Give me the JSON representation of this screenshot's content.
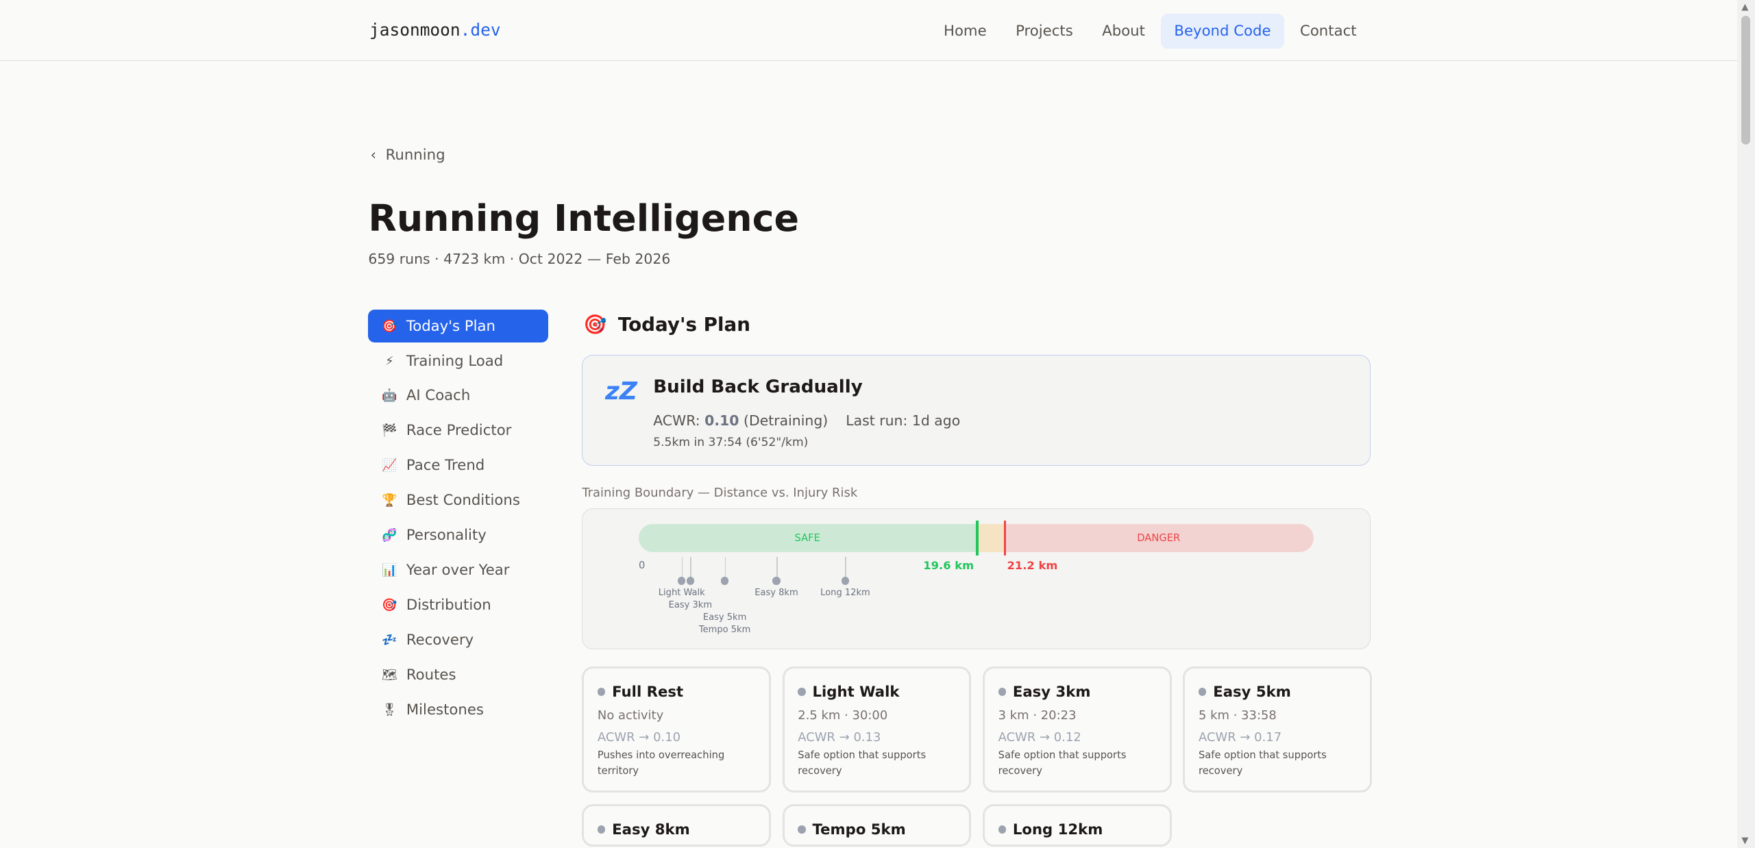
{
  "header": {
    "logo_name": "jasonmoon",
    "logo_tld": ".dev",
    "nav": [
      "Home",
      "Projects",
      "About",
      "Beyond Code",
      "Contact"
    ],
    "active_nav": "Beyond Code"
  },
  "breadcrumb": {
    "back_label": "Running"
  },
  "page": {
    "title": "Running Intelligence",
    "subtitle": "659 runs · 4723 km · Oct 2022 — Feb 2026"
  },
  "sidebar": {
    "items": [
      {
        "icon": "🎯",
        "label": "Today's Plan",
        "active": true
      },
      {
        "icon": "⚡",
        "label": "Training Load"
      },
      {
        "icon": "🤖",
        "label": "AI Coach"
      },
      {
        "icon": "🏁",
        "label": "Race Predictor"
      },
      {
        "icon": "📈",
        "label": "Pace Trend"
      },
      {
        "icon": "🏆",
        "label": "Best Conditions"
      },
      {
        "icon": "🧬",
        "label": "Personality"
      },
      {
        "icon": "📊",
        "label": "Year over Year"
      },
      {
        "icon": "🎯",
        "label": "Distribution"
      },
      {
        "icon": "💤",
        "label": "Recovery"
      },
      {
        "icon": "🗺",
        "label": "Routes"
      },
      {
        "icon": "🎖",
        "label": "Milestones"
      }
    ]
  },
  "section": {
    "icon": "🎯",
    "title": "Today's Plan"
  },
  "recommendation": {
    "icon": "💤",
    "title": "Build Back Gradually",
    "acwr_label": "ACWR:",
    "acwr_value": "0.10",
    "acwr_status": "(Detraining)",
    "last_run": "Last run: 1d ago",
    "detail": "5.5km in 37:54 (6'52\"/km)"
  },
  "boundary": {
    "caption": "Training Boundary — Distance vs. Injury Risk",
    "safe_label": "SAFE",
    "danger_label": "DANGER",
    "zero_label": "0",
    "safe_limit_km": 19.6,
    "danger_limit_km": 21.2,
    "safe_limit_label": "19.6 km",
    "danger_limit_label": "21.2 km",
    "scale_max_km": 39.2,
    "colors": {
      "safe": "#22c55e",
      "danger": "#ef4444"
    },
    "markers": [
      {
        "label": "Light Walk",
        "km": 2.5
      },
      {
        "label": "Easy 3km",
        "km": 3
      },
      {
        "label": "Easy 5km",
        "km": 5
      },
      {
        "label": "Tempo 5km",
        "km": 5
      },
      {
        "label": "Easy 8km",
        "km": 8
      },
      {
        "label": "Long 12km",
        "km": 12
      }
    ]
  },
  "options": [
    {
      "title": "Full Rest",
      "summary": "No activity",
      "acwr": "ACWR → 0.10",
      "note": "Pushes into overreaching territory"
    },
    {
      "title": "Light Walk",
      "summary": "2.5 km · 30:00",
      "acwr": "ACWR → 0.13",
      "note": "Safe option that supports recovery"
    },
    {
      "title": "Easy 3km",
      "summary": "3 km · 20:23",
      "acwr": "ACWR → 0.12",
      "note": "Safe option that supports recovery"
    },
    {
      "title": "Easy 5km",
      "summary": "5 km · 33:58",
      "acwr": "ACWR → 0.17",
      "note": "Safe option that supports recovery"
    },
    {
      "title": "Easy 8km"
    },
    {
      "title": "Tempo 5km"
    },
    {
      "title": "Long 12km"
    }
  ]
}
